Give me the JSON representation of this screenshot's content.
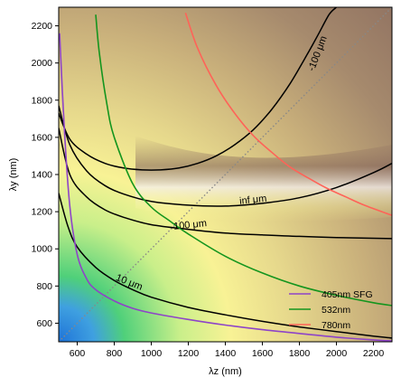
{
  "chart_data": {
    "type": "heatmap",
    "xlabel": "λz (nm)",
    "ylabel": "λy (nm)",
    "xlim": [
      500,
      2300
    ],
    "ylim": [
      500,
      2300
    ],
    "xticks": [
      600,
      800,
      1000,
      1200,
      1400,
      1600,
      1800,
      2000,
      2200
    ],
    "yticks": [
      600,
      800,
      1000,
      1200,
      1400,
      1600,
      1800,
      2000,
      2200
    ],
    "grid": false,
    "colormap": {
      "description": "background field: blue/green near lower-left, yellow band, tan-brown upper right with a light band along the infinite-coherence contour",
      "stops": [
        "#1e73d8",
        "#4fd07a",
        "#f8f295",
        "#d6c480",
        "#b29a74",
        "#86645a",
        "#f4efef"
      ]
    },
    "series": [
      {
        "name": "405nm SFG",
        "color": "#8e44c8",
        "x": [
          505,
          530,
          560,
          600,
          650,
          700,
          800,
          900,
          1000,
          1200,
          1400,
          1600,
          1800,
          2000,
          2200,
          2300
        ],
        "y": [
          2160,
          1650,
          1230,
          970,
          840,
          780,
          720,
          680,
          655,
          620,
          590,
          565,
          545,
          525,
          510,
          505
        ]
      },
      {
        "name": "532nm",
        "color": "#14951e",
        "x": [
          700,
          720,
          760,
          800,
          900,
          1000,
          1100,
          1200,
          1400,
          1600,
          1800,
          2000,
          2200,
          2300
        ],
        "y": [
          2260,
          2050,
          1780,
          1600,
          1350,
          1225,
          1150,
          1080,
          960,
          870,
          800,
          750,
          710,
          695
        ]
      },
      {
        "name": "780nm",
        "color": "#ff6358",
        "x": [
          1185,
          1250,
          1350,
          1450,
          1550,
          1650,
          1750,
          1850,
          1950,
          2050,
          2150,
          2300
        ],
        "y": [
          2270,
          2080,
          1880,
          1730,
          1610,
          1520,
          1440,
          1380,
          1325,
          1280,
          1235,
          1180
        ]
      }
    ],
    "contours": [
      {
        "label": "-100 μm",
        "color": "#000000",
        "x": [
          500,
          560,
          650,
          750,
          850,
          950,
          1050,
          1150,
          1250,
          1350,
          1450,
          1550,
          1650,
          1750,
          1850,
          1900,
          1960,
          2000
        ],
        "y": [
          1730,
          1590,
          1510,
          1460,
          1435,
          1425,
          1425,
          1435,
          1460,
          1500,
          1560,
          1640,
          1750,
          1890,
          2060,
          2150,
          2260,
          2300
        ]
      },
      {
        "label": "inf μm",
        "color": "#000000",
        "x": [
          500,
          560,
          650,
          750,
          850,
          1000,
          1200,
          1400,
          1600,
          1800,
          2000,
          2200,
          2300
        ],
        "y": [
          1770,
          1560,
          1420,
          1340,
          1295,
          1255,
          1235,
          1230,
          1245,
          1275,
          1330,
          1410,
          1460
        ]
      },
      {
        "label": "100 μm",
        "color": "#000000",
        "x": [
          500,
          560,
          650,
          750,
          850,
          1000,
          1200,
          1400,
          1600,
          1800,
          2000,
          2200,
          2300
        ],
        "y": [
          1650,
          1400,
          1280,
          1210,
          1170,
          1130,
          1105,
          1085,
          1075,
          1067,
          1061,
          1057,
          1055
        ]
      },
      {
        "label": "10 μm",
        "color": "#000000",
        "x": [
          500,
          550,
          600,
          700,
          800,
          900,
          1000,
          1200,
          1400,
          1600,
          1800,
          2000,
          2200,
          2300
        ],
        "y": [
          1300,
          1120,
          1010,
          900,
          830,
          780,
          740,
          685,
          645,
          610,
          580,
          555,
          530,
          520
        ]
      }
    ],
    "diagonal": {
      "style": "dotted",
      "color": "#888888",
      "x": [
        500,
        2300
      ],
      "y": [
        500,
        2300
      ]
    },
    "legend": {
      "position": "lower-right"
    }
  }
}
